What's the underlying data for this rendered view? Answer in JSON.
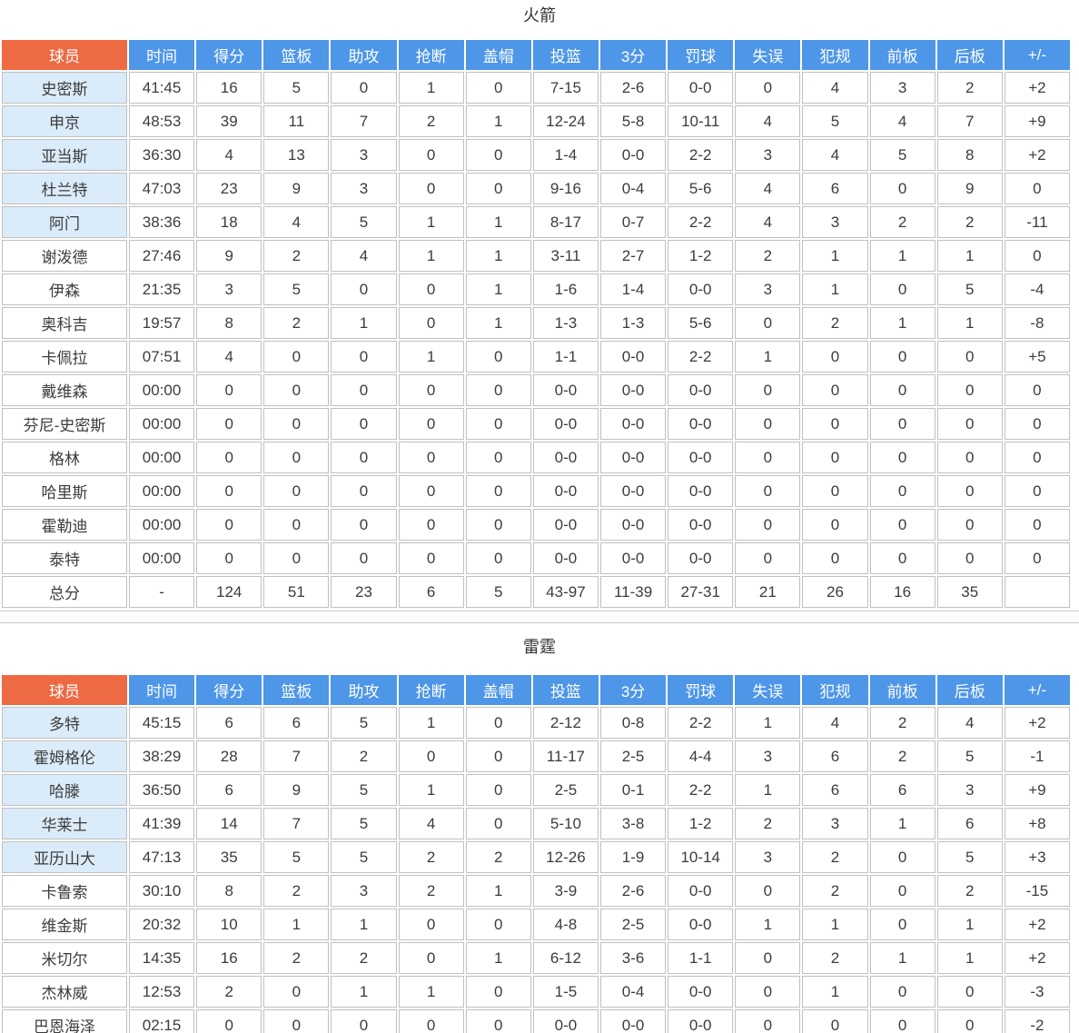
{
  "colors": {
    "header_name_bg": "#ED6A43",
    "header_stat_bg": "#4E96E8",
    "starter_name_bg": "#DAEBF9",
    "grid_line": "#C0C0C0",
    "header_text": "#FFFFFF",
    "body_text": "#3C3C3C"
  },
  "columns": [
    "球员",
    "时间",
    "得分",
    "篮板",
    "助攻",
    "抢断",
    "盖帽",
    "投篮",
    "3分",
    "罚球",
    "失误",
    "犯规",
    "前板",
    "后板",
    "+/-"
  ],
  "tables": [
    {
      "title": "火箭",
      "rows": [
        {
          "name": "史密斯",
          "starter": true,
          "total": false,
          "stats": [
            "41:45",
            "16",
            "5",
            "0",
            "1",
            "0",
            "7-15",
            "2-6",
            "0-0",
            "0",
            "4",
            "3",
            "2",
            "+2"
          ]
        },
        {
          "name": "申京",
          "starter": true,
          "total": false,
          "stats": [
            "48:53",
            "39",
            "11",
            "7",
            "2",
            "1",
            "12-24",
            "5-8",
            "10-11",
            "4",
            "5",
            "4",
            "7",
            "+9"
          ]
        },
        {
          "name": "亚当斯",
          "starter": true,
          "total": false,
          "stats": [
            "36:30",
            "4",
            "13",
            "3",
            "0",
            "0",
            "1-4",
            "0-0",
            "2-2",
            "3",
            "4",
            "5",
            "8",
            "+2"
          ]
        },
        {
          "name": "杜兰特",
          "starter": true,
          "total": false,
          "stats": [
            "47:03",
            "23",
            "9",
            "3",
            "0",
            "0",
            "9-16",
            "0-4",
            "5-6",
            "4",
            "6",
            "0",
            "9",
            "0"
          ]
        },
        {
          "name": "阿门",
          "starter": true,
          "total": false,
          "stats": [
            "38:36",
            "18",
            "4",
            "5",
            "1",
            "1",
            "8-17",
            "0-7",
            "2-2",
            "4",
            "3",
            "2",
            "2",
            "-11"
          ]
        },
        {
          "name": "谢泼德",
          "starter": false,
          "total": false,
          "stats": [
            "27:46",
            "9",
            "2",
            "4",
            "1",
            "1",
            "3-11",
            "2-7",
            "1-2",
            "2",
            "1",
            "1",
            "1",
            "0"
          ]
        },
        {
          "name": "伊森",
          "starter": false,
          "total": false,
          "stats": [
            "21:35",
            "3",
            "5",
            "0",
            "0",
            "1",
            "1-6",
            "1-4",
            "0-0",
            "3",
            "1",
            "0",
            "5",
            "-4"
          ]
        },
        {
          "name": "奥科吉",
          "starter": false,
          "total": false,
          "stats": [
            "19:57",
            "8",
            "2",
            "1",
            "0",
            "1",
            "1-3",
            "1-3",
            "5-6",
            "0",
            "2",
            "1",
            "1",
            "-8"
          ]
        },
        {
          "name": "卡佩拉",
          "starter": false,
          "total": false,
          "stats": [
            "07:51",
            "4",
            "0",
            "0",
            "1",
            "0",
            "1-1",
            "0-0",
            "2-2",
            "1",
            "0",
            "0",
            "0",
            "+5"
          ]
        },
        {
          "name": "戴维森",
          "starter": false,
          "total": false,
          "stats": [
            "00:00",
            "0",
            "0",
            "0",
            "0",
            "0",
            "0-0",
            "0-0",
            "0-0",
            "0",
            "0",
            "0",
            "0",
            "0"
          ]
        },
        {
          "name": "芬尼-史密斯",
          "starter": false,
          "total": false,
          "stats": [
            "00:00",
            "0",
            "0",
            "0",
            "0",
            "0",
            "0-0",
            "0-0",
            "0-0",
            "0",
            "0",
            "0",
            "0",
            "0"
          ]
        },
        {
          "name": "格林",
          "starter": false,
          "total": false,
          "stats": [
            "00:00",
            "0",
            "0",
            "0",
            "0",
            "0",
            "0-0",
            "0-0",
            "0-0",
            "0",
            "0",
            "0",
            "0",
            "0"
          ]
        },
        {
          "name": "哈里斯",
          "starter": false,
          "total": false,
          "stats": [
            "00:00",
            "0",
            "0",
            "0",
            "0",
            "0",
            "0-0",
            "0-0",
            "0-0",
            "0",
            "0",
            "0",
            "0",
            "0"
          ]
        },
        {
          "name": "霍勒迪",
          "starter": false,
          "total": false,
          "stats": [
            "00:00",
            "0",
            "0",
            "0",
            "0",
            "0",
            "0-0",
            "0-0",
            "0-0",
            "0",
            "0",
            "0",
            "0",
            "0"
          ]
        },
        {
          "name": "泰特",
          "starter": false,
          "total": false,
          "stats": [
            "00:00",
            "0",
            "0",
            "0",
            "0",
            "0",
            "0-0",
            "0-0",
            "0-0",
            "0",
            "0",
            "0",
            "0",
            "0"
          ]
        },
        {
          "name": "总分",
          "starter": false,
          "total": true,
          "stats": [
            "-",
            "124",
            "51",
            "23",
            "6",
            "5",
            "43-97",
            "11-39",
            "27-31",
            "21",
            "26",
            "16",
            "35",
            ""
          ]
        }
      ]
    },
    {
      "title": "雷霆",
      "rows": [
        {
          "name": "多特",
          "starter": true,
          "total": false,
          "stats": [
            "45:15",
            "6",
            "6",
            "5",
            "1",
            "0",
            "2-12",
            "0-8",
            "2-2",
            "1",
            "4",
            "2",
            "4",
            "+2"
          ]
        },
        {
          "name": "霍姆格伦",
          "starter": true,
          "total": false,
          "stats": [
            "38:29",
            "28",
            "7",
            "2",
            "0",
            "0",
            "11-17",
            "2-5",
            "4-4",
            "3",
            "6",
            "2",
            "5",
            "-1"
          ]
        },
        {
          "name": "哈滕",
          "starter": true,
          "total": false,
          "stats": [
            "36:50",
            "6",
            "9",
            "5",
            "1",
            "0",
            "2-5",
            "0-1",
            "2-2",
            "1",
            "6",
            "6",
            "3",
            "+9"
          ]
        },
        {
          "name": "华莱士",
          "starter": true,
          "total": false,
          "stats": [
            "41:39",
            "14",
            "7",
            "5",
            "4",
            "0",
            "5-10",
            "3-8",
            "1-2",
            "2",
            "3",
            "1",
            "6",
            "+8"
          ]
        },
        {
          "name": "亚历山大",
          "starter": true,
          "total": false,
          "stats": [
            "47:13",
            "35",
            "5",
            "5",
            "2",
            "2",
            "12-26",
            "1-9",
            "10-14",
            "3",
            "2",
            "0",
            "5",
            "+3"
          ]
        },
        {
          "name": "卡鲁索",
          "starter": false,
          "total": false,
          "stats": [
            "30:10",
            "8",
            "2",
            "3",
            "2",
            "1",
            "3-9",
            "2-6",
            "0-0",
            "0",
            "2",
            "0",
            "2",
            "-15"
          ]
        },
        {
          "name": "维金斯",
          "starter": false,
          "total": false,
          "stats": [
            "20:32",
            "10",
            "1",
            "1",
            "0",
            "0",
            "4-8",
            "2-5",
            "0-0",
            "1",
            "1",
            "0",
            "1",
            "+2"
          ]
        },
        {
          "name": "米切尔",
          "starter": false,
          "total": false,
          "stats": [
            "14:35",
            "16",
            "2",
            "2",
            "0",
            "1",
            "6-12",
            "3-6",
            "1-1",
            "0",
            "2",
            "1",
            "1",
            "+2"
          ]
        },
        {
          "name": "杰林威",
          "starter": false,
          "total": false,
          "stats": [
            "12:53",
            "2",
            "0",
            "1",
            "1",
            "0",
            "1-5",
            "0-4",
            "0-0",
            "0",
            "1",
            "0",
            "0",
            "-3"
          ]
        },
        {
          "name": "巴恩海泽",
          "starter": false,
          "total": false,
          "stats": [
            "02:15",
            "0",
            "0",
            "0",
            "0",
            "0",
            "0-0",
            "0-0",
            "0-0",
            "0",
            "0",
            "0",
            "0",
            "-2"
          ]
        }
      ]
    }
  ]
}
